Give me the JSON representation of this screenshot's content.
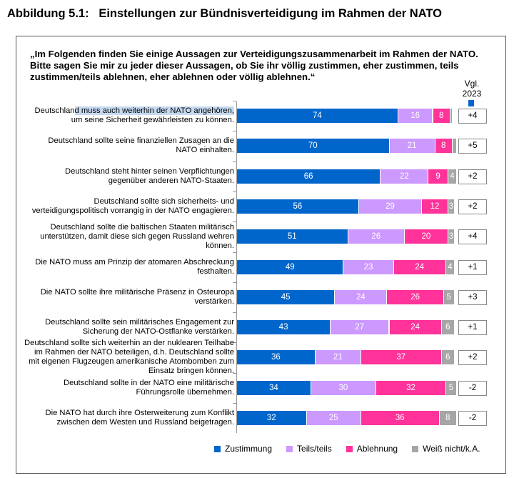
{
  "title": "Abbildung 5.1:   Einstellungen zur Bündnisverteidigung im Rahmen der NATO",
  "question": "„Im Folgenden finden Sie einige Aussagen zur Verteidigungszusammenarbeit im Rahmen der NATO. Bitte sagen Sie mir zu jeder dieser Aussagen, ob Sie ihr völlig zustimmen, eher zustimmen, teils zustimmen/teils ablehnen, eher ablehnen oder völlig ablehnen.“",
  "comparison_header": [
    "Vgl.",
    "2023"
  ],
  "chart_data": {
    "type": "bar",
    "orientation": "horizontal",
    "stacked": true,
    "xlim": [
      0,
      100
    ],
    "categories": [
      [
        "Deutschland muss auch weiterhin der NATO angehören,",
        "um seine Sicherheit gewährleisten zu können."
      ],
      [
        "Deutschland sollte seine finanziellen Zusagen an die",
        "NATO einhalten."
      ],
      [
        "Deutschland steht hinter seinen Verpflichtungen",
        "gegenüber anderen NATO-Staaten."
      ],
      [
        "Deutschland sollte sich sicherheits- und",
        "verteidigungspolitisch vorrangig in der NATO engagieren."
      ],
      [
        "Deutschland sollte die baltischen Staaten militärisch",
        "unterstützen, damit diese sich gegen Russland wehren",
        "können."
      ],
      [
        "Die NATO muss am Prinzip der atomaren Abschreckung",
        "festhalten."
      ],
      [
        "Die NATO sollte ihre militärische Präsenz in Osteuropa",
        "verstärken."
      ],
      [
        "Deutschland sollte sein militärisches Engagement zur",
        "Sicherung der NATO-Ostflanke verstärken."
      ],
      [
        "Deutschland sollte sich weiterhin an der nuklearen Teilhabe",
        "im Rahmen der NATO beteiligen, d.h. Deutschland sollte",
        "mit eigenen Flugzeugen amerikanische Atombomben zum",
        "Einsatz bringen können."
      ],
      [
        "Deutschland sollte in der NATO eine militärische",
        "Führungsrolle übernehmen."
      ],
      [
        "Die NATO hat durch ihre Osterweiterung zum Konflikt",
        "zwischen dem Westen und Russland beigetragen."
      ]
    ],
    "series": [
      {
        "name": "Zustimmung",
        "color": "#0066cc",
        "values": [
          74,
          70,
          66,
          56,
          51,
          49,
          45,
          43,
          36,
          34,
          32
        ]
      },
      {
        "name": "Teils/teils",
        "color": "#cc99ff",
        "values": [
          16,
          21,
          22,
          29,
          26,
          23,
          24,
          27,
          21,
          30,
          25
        ]
      },
      {
        "name": "Ablehnung",
        "color": "#ff3399",
        "values": [
          8,
          8,
          9,
          12,
          20,
          24,
          26,
          24,
          37,
          32,
          36
        ]
      },
      {
        "name": "Weiß nicht/k.A.",
        "color": "#a6a6a6",
        "values": [
          1,
          2,
          4,
          3,
          3,
          4,
          5,
          6,
          6,
          5,
          8
        ]
      }
    ],
    "comparison_2023": [
      "+4",
      "+5",
      "+2",
      "+2",
      "+4",
      "+1",
      "+3",
      "+1",
      "+2",
      "-2",
      "-2"
    ],
    "legend_position": "bottom"
  }
}
